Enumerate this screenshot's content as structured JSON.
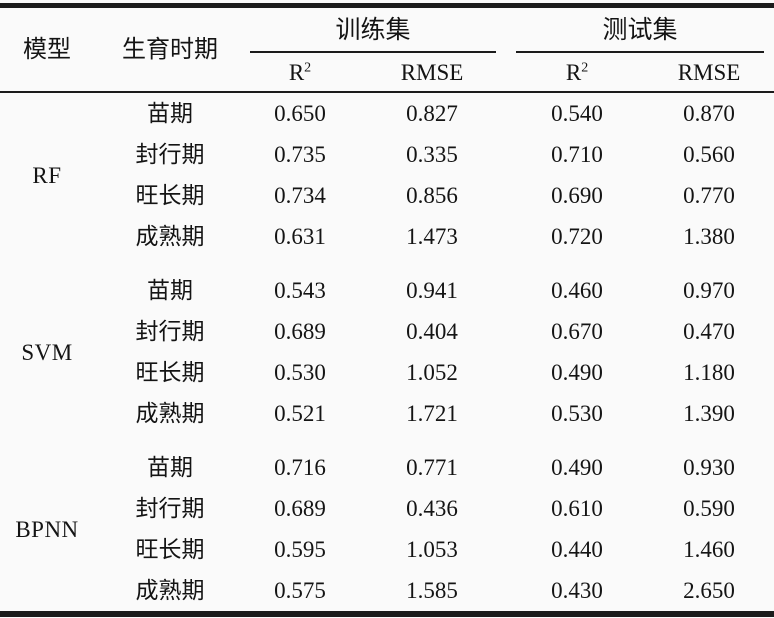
{
  "meta": {
    "background_color": "#fafafa",
    "text_color": "#141414",
    "rule_color": "#1b1b1b"
  },
  "header": {
    "model": "模型",
    "stage": "生育时期",
    "train": "训练集",
    "test": "测试集",
    "r2_base": "R",
    "r2_sup": "2",
    "rmse": "RMSE"
  },
  "chart_data": {
    "type": "table",
    "row_header_columns": [
      "模型",
      "生育时期"
    ],
    "column_groups": [
      {
        "label": "训练集",
        "columns": [
          "R2",
          "RMSE"
        ]
      },
      {
        "label": "测试集",
        "columns": [
          "R2",
          "RMSE"
        ]
      }
    ],
    "groups": [
      {
        "model": "RF",
        "rows": [
          {
            "stage": "苗期",
            "values": [
              "0.650",
              "0.827",
              "0.540",
              "0.870"
            ]
          },
          {
            "stage": "封行期",
            "values": [
              "0.735",
              "0.335",
              "0.710",
              "0.560"
            ]
          },
          {
            "stage": "旺长期",
            "values": [
              "0.734",
              "0.856",
              "0.690",
              "0.770"
            ]
          },
          {
            "stage": "成熟期",
            "values": [
              "0.631",
              "1.473",
              "0.720",
              "1.380"
            ]
          }
        ]
      },
      {
        "model": "SVM",
        "rows": [
          {
            "stage": "苗期",
            "values": [
              "0.543",
              "0.941",
              "0.460",
              "0.970"
            ]
          },
          {
            "stage": "封行期",
            "values": [
              "0.689",
              "0.404",
              "0.670",
              "0.470"
            ]
          },
          {
            "stage": "旺长期",
            "values": [
              "0.530",
              "1.052",
              "0.490",
              "1.180"
            ]
          },
          {
            "stage": "成熟期",
            "values": [
              "0.521",
              "1.721",
              "0.530",
              "1.390"
            ]
          }
        ]
      },
      {
        "model": "BPNN",
        "rows": [
          {
            "stage": "苗期",
            "values": [
              "0.716",
              "0.771",
              "0.490",
              "0.930"
            ]
          },
          {
            "stage": "封行期",
            "values": [
              "0.689",
              "0.436",
              "0.610",
              "0.590"
            ]
          },
          {
            "stage": "旺长期",
            "values": [
              "0.595",
              "1.053",
              "0.440",
              "1.460"
            ]
          },
          {
            "stage": "成熟期",
            "values": [
              "0.575",
              "1.585",
              "0.430",
              "2.650"
            ]
          }
        ]
      }
    ]
  }
}
